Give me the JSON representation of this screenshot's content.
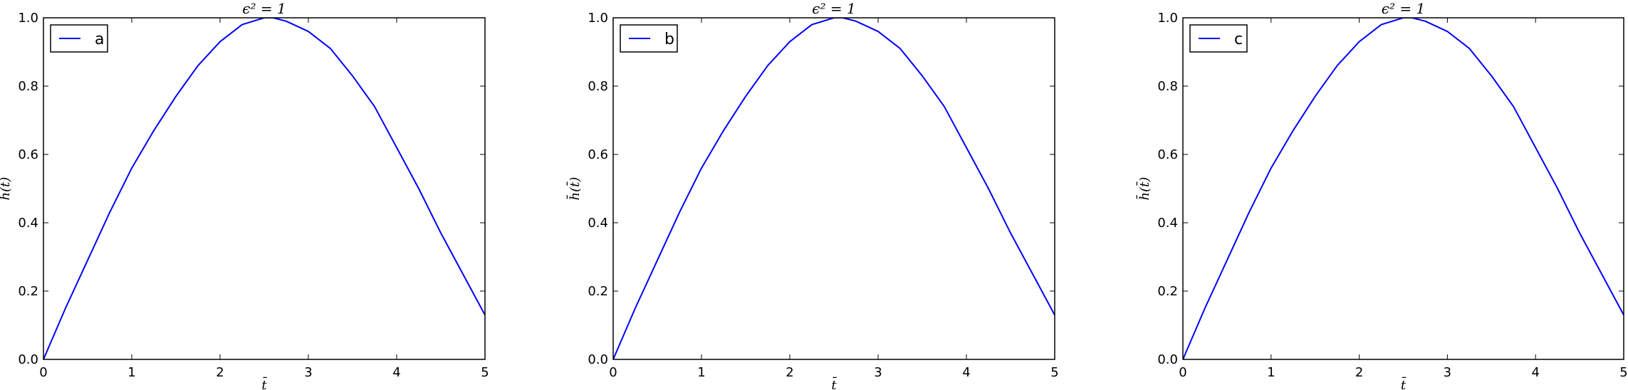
{
  "chart_data": [
    {
      "type": "line",
      "title": "ϵ² = 1",
      "xlabel": "t̄",
      "ylabel": "h̄(t̄)",
      "xlim": [
        0,
        5
      ],
      "ylim": [
        0.0,
        1.0
      ],
      "xticks": [
        "0",
        "1",
        "2",
        "3",
        "4",
        "5"
      ],
      "yticks": [
        "0.0",
        "0.2",
        "0.4",
        "0.6",
        "0.8",
        "1.0"
      ],
      "grid": false,
      "legend": "top-left",
      "series": [
        {
          "name": "a",
          "color": "#0000ff",
          "x": [
            0,
            0.25,
            0.5,
            0.75,
            1.0,
            1.25,
            1.5,
            1.75,
            2.0,
            2.25,
            2.5,
            2.6,
            2.75,
            3.0,
            3.25,
            3.5,
            3.75,
            4.0,
            4.25,
            4.5,
            4.75,
            5.0
          ],
          "y": [
            0.0,
            0.15,
            0.29,
            0.43,
            0.56,
            0.67,
            0.77,
            0.86,
            0.93,
            0.98,
            1.0,
            1.0,
            0.99,
            0.96,
            0.91,
            0.83,
            0.74,
            0.62,
            0.5,
            0.37,
            0.25,
            0.13
          ]
        }
      ]
    },
    {
      "type": "line",
      "title": "ϵ² = 1",
      "xlabel": "t̄",
      "ylabel": "h̄(t̄)",
      "xlim": [
        0,
        5
      ],
      "ylim": [
        0.0,
        1.0
      ],
      "xticks": [
        "0",
        "1",
        "2",
        "3",
        "4",
        "5"
      ],
      "yticks": [
        "0.0",
        "0.2",
        "0.4",
        "0.6",
        "0.8",
        "1.0"
      ],
      "grid": false,
      "legend": "top-left",
      "series": [
        {
          "name": "b",
          "color": "#0000ff",
          "x": [
            0,
            0.25,
            0.5,
            0.75,
            1.0,
            1.25,
            1.5,
            1.75,
            2.0,
            2.25,
            2.5,
            2.6,
            2.75,
            3.0,
            3.25,
            3.5,
            3.75,
            4.0,
            4.25,
            4.5,
            4.75,
            5.0
          ],
          "y": [
            0.0,
            0.15,
            0.29,
            0.43,
            0.56,
            0.67,
            0.77,
            0.86,
            0.93,
            0.98,
            1.0,
            1.0,
            0.99,
            0.96,
            0.91,
            0.83,
            0.74,
            0.62,
            0.5,
            0.37,
            0.25,
            0.13
          ]
        }
      ]
    },
    {
      "type": "line",
      "title": "ϵ² = 1",
      "xlabel": "t̄",
      "ylabel": "h̄(t̄)",
      "xlim": [
        0,
        5
      ],
      "ylim": [
        0.0,
        1.0
      ],
      "xticks": [
        "0",
        "1",
        "2",
        "3",
        "4",
        "5"
      ],
      "yticks": [
        "0.0",
        "0.2",
        "0.4",
        "0.6",
        "0.8",
        "1.0"
      ],
      "grid": false,
      "legend": "top-left",
      "series": [
        {
          "name": "c",
          "color": "#0000ff",
          "x": [
            0,
            0.25,
            0.5,
            0.75,
            1.0,
            1.25,
            1.5,
            1.75,
            2.0,
            2.25,
            2.5,
            2.6,
            2.75,
            3.0,
            3.25,
            3.5,
            3.75,
            4.0,
            4.25,
            4.5,
            4.75,
            5.0
          ],
          "y": [
            0.0,
            0.15,
            0.29,
            0.43,
            0.56,
            0.67,
            0.77,
            0.86,
            0.93,
            0.98,
            1.0,
            1.0,
            0.99,
            0.96,
            0.91,
            0.83,
            0.74,
            0.62,
            0.5,
            0.37,
            0.25,
            0.13
          ]
        }
      ]
    }
  ]
}
